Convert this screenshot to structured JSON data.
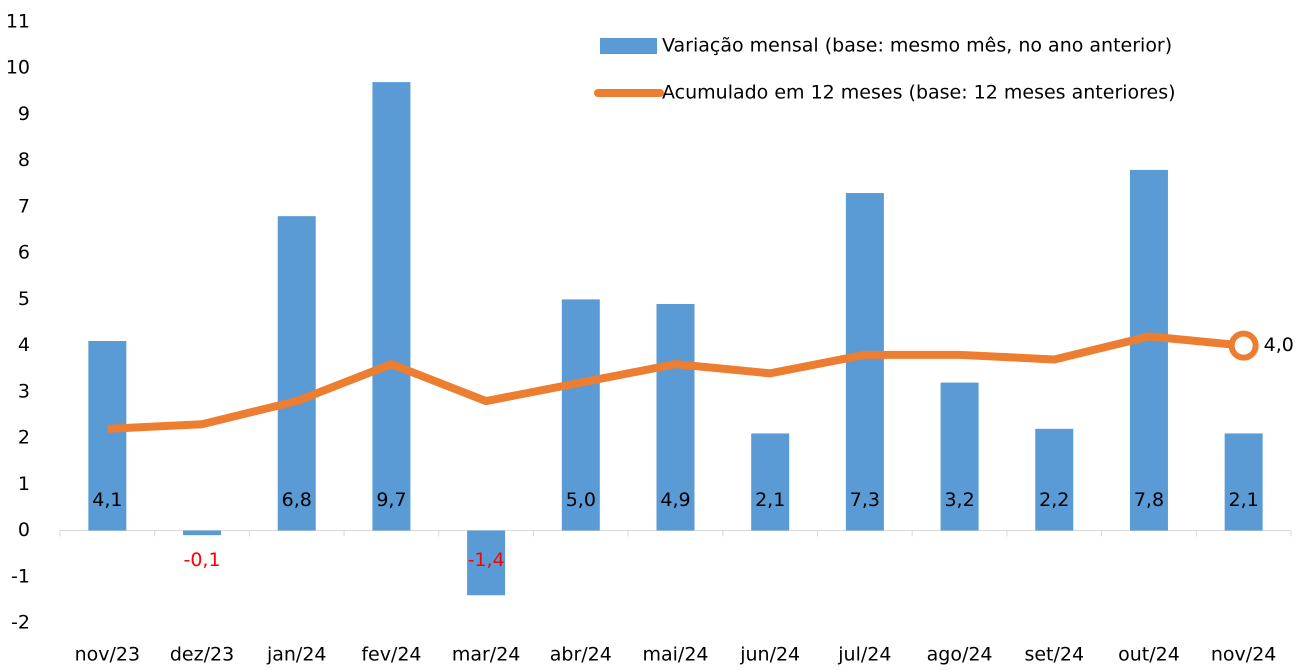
{
  "chart_data": {
    "type": "combo",
    "categories": [
      "nov/23",
      "dez/23",
      "jan/24",
      "fev/24",
      "mar/24",
      "abr/24",
      "mai/24",
      "jun/24",
      "jul/24",
      "ago/24",
      "set/24",
      "out/24",
      "nov/24"
    ],
    "series": [
      {
        "name": "Variação mensal (base: mesmo mês, no ano anterior)",
        "type": "bar",
        "color": "#5b9bd5",
        "values": [
          4.1,
          -0.1,
          6.8,
          9.7,
          -1.4,
          5.0,
          4.9,
          2.1,
          7.3,
          3.2,
          2.2,
          7.8,
          2.1
        ],
        "value_labels": [
          "4,1",
          "-0,1",
          "6,8",
          "9,7",
          "-1,4",
          "5,0",
          "4,9",
          "2,1",
          "7,3",
          "3,2",
          "2,2",
          "7,8",
          "2,1"
        ]
      },
      {
        "name": "Acumulado em 12 meses (base: 12 meses anteriores)",
        "type": "line",
        "color": "#ed7d31",
        "values": [
          2.2,
          2.3,
          2.8,
          3.6,
          2.8,
          3.2,
          3.6,
          3.4,
          3.8,
          3.8,
          3.7,
          4.2,
          4.0
        ],
        "value_labels": [
          null,
          null,
          null,
          null,
          null,
          null,
          null,
          null,
          null,
          null,
          null,
          null,
          "4,0"
        ]
      }
    ],
    "negative_label_color": "#ff0000",
    "ylim": [
      -2,
      11
    ],
    "yticks": [
      -2,
      -1,
      0,
      1,
      2,
      3,
      4,
      5,
      6,
      7,
      8,
      9,
      10,
      11
    ],
    "grid": false,
    "legend": "top-right"
  }
}
